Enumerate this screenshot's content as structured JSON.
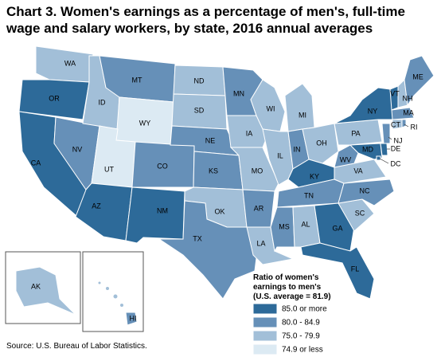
{
  "title": [
    "Chart 3. Women's earnings as a percentage of men's, full-time",
    "wage and salary workers, by state, 2016 annual averages"
  ],
  "legend": {
    "title": [
      "Ratio of women's",
      "earnings to men's",
      "(U.S. average = 81.9)"
    ],
    "items": [
      {
        "label": "85.0 or more",
        "color": "#2d6a99"
      },
      {
        "label": "80.0 - 84.9",
        "color": "#6690b8"
      },
      {
        "label": "75.0 - 79.9",
        "color": "#a2bfd8"
      },
      {
        "label": "74.9 or less",
        "color": "#dceaf3"
      }
    ]
  },
  "states": [
    {
      "abbr": "WA",
      "color": "#a2bfd8"
    },
    {
      "abbr": "OR",
      "color": "#2d6a99"
    },
    {
      "abbr": "CA",
      "color": "#2d6a99"
    },
    {
      "abbr": "NV",
      "color": "#6690b8"
    },
    {
      "abbr": "ID",
      "color": "#a2bfd8"
    },
    {
      "abbr": "MT",
      "color": "#6690b8"
    },
    {
      "abbr": "WY",
      "color": "#dceaf3"
    },
    {
      "abbr": "UT",
      "color": "#dceaf3"
    },
    {
      "abbr": "AZ",
      "color": "#2d6a99"
    },
    {
      "abbr": "CO",
      "color": "#6690b8"
    },
    {
      "abbr": "NM",
      "color": "#2d6a99"
    },
    {
      "abbr": "ND",
      "color": "#a2bfd8"
    },
    {
      "abbr": "SD",
      "color": "#a2bfd8"
    },
    {
      "abbr": "NE",
      "color": "#6690b8"
    },
    {
      "abbr": "KS",
      "color": "#6690b8"
    },
    {
      "abbr": "OK",
      "color": "#a2bfd8"
    },
    {
      "abbr": "TX",
      "color": "#6690b8"
    },
    {
      "abbr": "MN",
      "color": "#6690b8"
    },
    {
      "abbr": "IA",
      "color": "#a2bfd8"
    },
    {
      "abbr": "MO",
      "color": "#a2bfd8"
    },
    {
      "abbr": "AR",
      "color": "#6690b8"
    },
    {
      "abbr": "LA",
      "color": "#a2bfd8"
    },
    {
      "abbr": "WI",
      "color": "#a2bfd8"
    },
    {
      "abbr": "IL",
      "color": "#a2bfd8"
    },
    {
      "abbr": "MI",
      "color": "#a2bfd8"
    },
    {
      "abbr": "IN",
      "color": "#6690b8"
    },
    {
      "abbr": "OH",
      "color": "#a2bfd8"
    },
    {
      "abbr": "KY",
      "color": "#2d6a99"
    },
    {
      "abbr": "TN",
      "color": "#6690b8"
    },
    {
      "abbr": "MS",
      "color": "#6690b8"
    },
    {
      "abbr": "AL",
      "color": "#a2bfd8"
    },
    {
      "abbr": "GA",
      "color": "#2d6a99"
    },
    {
      "abbr": "FL",
      "color": "#2d6a99"
    },
    {
      "abbr": "SC",
      "color": "#a2bfd8"
    },
    {
      "abbr": "NC",
      "color": "#6690b8"
    },
    {
      "abbr": "VA",
      "color": "#a2bfd8"
    },
    {
      "abbr": "WV",
      "color": "#6690b8"
    },
    {
      "abbr": "MD",
      "color": "#2d6a99"
    },
    {
      "abbr": "DE",
      "color": "#2d6a99"
    },
    {
      "abbr": "DC",
      "color": "#2d6a99"
    },
    {
      "abbr": "PA",
      "color": "#a2bfd8"
    },
    {
      "abbr": "NY",
      "color": "#2d6a99"
    },
    {
      "abbr": "NJ",
      "color": "#6690b8"
    },
    {
      "abbr": "CT",
      "color": "#a2bfd8"
    },
    {
      "abbr": "RI",
      "color": "#6690b8"
    },
    {
      "abbr": "MA",
      "color": "#6690b8"
    },
    {
      "abbr": "VT",
      "color": "#2d6a99"
    },
    {
      "abbr": "NH",
      "color": "#a2bfd8"
    },
    {
      "abbr": "ME",
      "color": "#6690b8"
    },
    {
      "abbr": "AK",
      "color": "#a2bfd8"
    },
    {
      "abbr": "HI",
      "color": "#6690b8"
    }
  ],
  "source": "Source: U.S. Bureau of Labor Statistics."
}
